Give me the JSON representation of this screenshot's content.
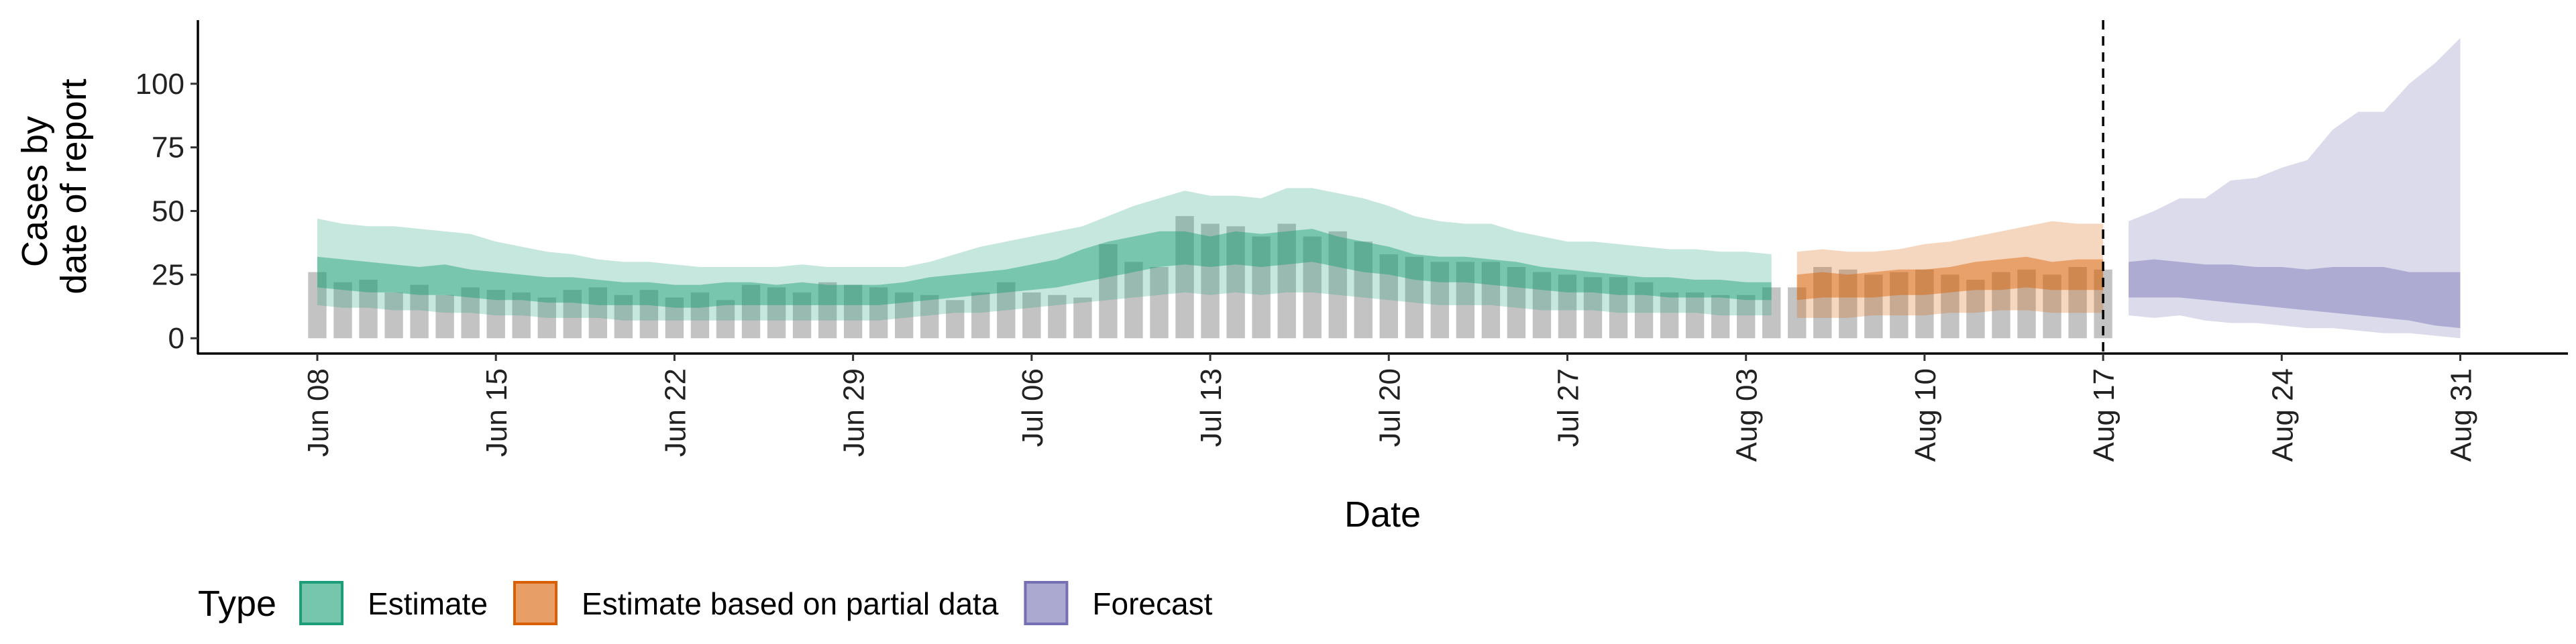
{
  "chart_data": {
    "type": "band",
    "x_label": "Date",
    "y_label": [
      "Cases by",
      "date of report"
    ],
    "legend_title": "Type",
    "ylim": [
      -6,
      125
    ],
    "yticks": [
      0,
      25,
      50,
      75,
      100
    ],
    "xticks": [
      "Jun 08",
      "Jun 15",
      "Jun 22",
      "Jun 29",
      "Jul 06",
      "Jul 13",
      "Jul 20",
      "Jul 27",
      "Aug 03",
      "Aug 10",
      "Aug 17",
      "Aug 24",
      "Aug 31"
    ],
    "x": [
      "Jun 08",
      "Jun 09",
      "Jun 10",
      "Jun 11",
      "Jun 12",
      "Jun 13",
      "Jun 14",
      "Jun 15",
      "Jun 16",
      "Jun 17",
      "Jun 18",
      "Jun 19",
      "Jun 20",
      "Jun 21",
      "Jun 22",
      "Jun 23",
      "Jun 24",
      "Jun 25",
      "Jun 26",
      "Jun 27",
      "Jun 28",
      "Jun 29",
      "Jun 30",
      "Jul 01",
      "Jul 02",
      "Jul 03",
      "Jul 04",
      "Jul 05",
      "Jul 06",
      "Jul 07",
      "Jul 08",
      "Jul 09",
      "Jul 10",
      "Jul 11",
      "Jul 12",
      "Jul 13",
      "Jul 14",
      "Jul 15",
      "Jul 16",
      "Jul 17",
      "Jul 18",
      "Jul 19",
      "Jul 20",
      "Jul 21",
      "Jul 22",
      "Jul 23",
      "Jul 24",
      "Jul 25",
      "Jul 26",
      "Jul 27",
      "Jul 28",
      "Jul 29",
      "Jul 30",
      "Jul 31",
      "Aug 01",
      "Aug 02",
      "Aug 03",
      "Aug 04",
      "Aug 05",
      "Aug 06",
      "Aug 07",
      "Aug 08",
      "Aug 09",
      "Aug 10",
      "Aug 11",
      "Aug 12",
      "Aug 13",
      "Aug 14",
      "Aug 15",
      "Aug 16",
      "Aug 17",
      "Aug 18",
      "Aug 19",
      "Aug 20",
      "Aug 21",
      "Aug 22",
      "Aug 23",
      "Aug 24",
      "Aug 25",
      "Aug 26",
      "Aug 27",
      "Aug 28",
      "Aug 29",
      "Aug 30",
      "Aug 31"
    ],
    "bar_color": "#bdbdbd",
    "bar_values": [
      26,
      22,
      23,
      18,
      21,
      17,
      20,
      19,
      18,
      16,
      19,
      20,
      17,
      19,
      16,
      18,
      15,
      21,
      20,
      18,
      22,
      21,
      20,
      18,
      17,
      15,
      18,
      22,
      18,
      17,
      16,
      37,
      30,
      28,
      48,
      45,
      44,
      40,
      45,
      40,
      42,
      38,
      33,
      32,
      30,
      30,
      30,
      28,
      26,
      25,
      24,
      24,
      22,
      18,
      18,
      17,
      17,
      20,
      20,
      28,
      27,
      25,
      26,
      27,
      25,
      23,
      26,
      27,
      25,
      28,
      27,
      null,
      null,
      null,
      null,
      null,
      null,
      null,
      null,
      null,
      null,
      null,
      null,
      null,
      null
    ],
    "series": [
      {
        "name": "Estimate",
        "color": "#1b9e77",
        "x": [
          "Jun 08",
          "Jun 09",
          "Jun 10",
          "Jun 11",
          "Jun 12",
          "Jun 13",
          "Jun 14",
          "Jun 15",
          "Jun 16",
          "Jun 17",
          "Jun 18",
          "Jun 19",
          "Jun 20",
          "Jun 21",
          "Jun 22",
          "Jun 23",
          "Jun 24",
          "Jun 25",
          "Jun 26",
          "Jun 27",
          "Jun 28",
          "Jun 29",
          "Jun 30",
          "Jul 01",
          "Jul 02",
          "Jul 03",
          "Jul 04",
          "Jul 05",
          "Jul 06",
          "Jul 07",
          "Jul 08",
          "Jul 09",
          "Jul 10",
          "Jul 11",
          "Jul 12",
          "Jul 13",
          "Jul 14",
          "Jul 15",
          "Jul 16",
          "Jul 17",
          "Jul 18",
          "Jul 19",
          "Jul 20",
          "Jul 21",
          "Jul 22",
          "Jul 23",
          "Jul 24",
          "Jul 25",
          "Jul 26",
          "Jul 27",
          "Jul 28",
          "Jul 29",
          "Jul 30",
          "Jul 31",
          "Aug 01",
          "Aug 02",
          "Aug 03",
          "Aug 04"
        ],
        "upper_90": [
          47,
          45,
          44,
          44,
          43,
          42,
          41,
          38,
          36,
          34,
          33,
          31,
          30,
          30,
          29,
          28,
          28,
          28,
          28,
          29,
          28,
          28,
          28,
          28,
          30,
          33,
          36,
          38,
          40,
          42,
          44,
          48,
          52,
          55,
          58,
          56,
          56,
          55,
          59,
          59,
          57,
          55,
          52,
          48,
          46,
          45,
          45,
          42,
          40,
          38,
          38,
          37,
          36,
          35,
          35,
          34,
          34,
          33
        ],
        "upper_50": [
          32,
          31,
          30,
          29,
          28,
          29,
          27,
          26,
          25,
          24,
          24,
          23,
          22,
          22,
          21,
          21,
          22,
          22,
          21,
          22,
          21,
          21,
          21,
          22,
          24,
          25,
          26,
          27,
          29,
          31,
          35,
          38,
          40,
          42,
          42,
          40,
          42,
          41,
          42,
          43,
          40,
          38,
          36,
          33,
          32,
          32,
          31,
          30,
          28,
          27,
          26,
          25,
          24,
          24,
          23,
          23,
          22,
          22
        ],
        "lower_50": [
          20,
          19,
          18,
          18,
          17,
          17,
          16,
          15,
          15,
          14,
          14,
          13,
          13,
          13,
          12,
          12,
          13,
          13,
          13,
          13,
          13,
          13,
          13,
          14,
          15,
          16,
          17,
          18,
          19,
          20,
          22,
          24,
          26,
          28,
          29,
          28,
          29,
          28,
          29,
          30,
          28,
          26,
          25,
          23,
          22,
          22,
          21,
          20,
          19,
          18,
          18,
          17,
          17,
          16,
          16,
          16,
          15,
          15
        ],
        "lower_90": [
          13,
          12,
          12,
          11,
          11,
          10,
          10,
          9,
          9,
          8,
          8,
          8,
          7,
          7,
          7,
          7,
          7,
          7,
          7,
          7,
          7,
          7,
          7,
          8,
          9,
          10,
          10,
          11,
          12,
          13,
          14,
          15,
          16,
          17,
          18,
          17,
          18,
          17,
          18,
          18,
          17,
          16,
          15,
          14,
          13,
          13,
          13,
          12,
          11,
          11,
          11,
          10,
          10,
          10,
          10,
          9,
          9,
          9
        ]
      },
      {
        "name": "Estimate based on partial data",
        "color": "#d95f02",
        "x": [
          "Aug 05",
          "Aug 06",
          "Aug 07",
          "Aug 08",
          "Aug 09",
          "Aug 10",
          "Aug 11",
          "Aug 12",
          "Aug 13",
          "Aug 14",
          "Aug 15",
          "Aug 16",
          "Aug 17"
        ],
        "upper_90": [
          34,
          35,
          34,
          34,
          35,
          37,
          38,
          40,
          42,
          44,
          46,
          45,
          45
        ],
        "upper_50": [
          25,
          26,
          25,
          26,
          27,
          27,
          28,
          30,
          31,
          32,
          30,
          31,
          31
        ],
        "lower_50": [
          15,
          16,
          16,
          16,
          17,
          17,
          18,
          19,
          19,
          20,
          19,
          19,
          19
        ],
        "lower_90": [
          8,
          8,
          8,
          9,
          9,
          9,
          10,
          10,
          11,
          11,
          10,
          10,
          10
        ]
      },
      {
        "name": "Forecast",
        "color": "#7570b3",
        "x": [
          "Aug 18",
          "Aug 19",
          "Aug 20",
          "Aug 21",
          "Aug 22",
          "Aug 23",
          "Aug 24",
          "Aug 25",
          "Aug 26",
          "Aug 27",
          "Aug 28",
          "Aug 29",
          "Aug 30",
          "Aug 31"
        ],
        "upper_90": [
          46,
          50,
          55,
          55,
          62,
          63,
          67,
          70,
          82,
          89,
          89,
          100,
          108,
          118
        ],
        "upper_50": [
          30,
          31,
          30,
          29,
          29,
          28,
          28,
          27,
          28,
          28,
          28,
          26,
          26,
          26
        ],
        "lower_50": [
          16,
          16,
          16,
          15,
          14,
          13,
          12,
          11,
          10,
          9,
          8,
          7,
          5,
          4
        ],
        "lower_90": [
          9,
          8,
          9,
          7,
          6,
          6,
          5,
          4,
          4,
          3,
          2,
          2,
          1,
          0
        ]
      }
    ]
  }
}
